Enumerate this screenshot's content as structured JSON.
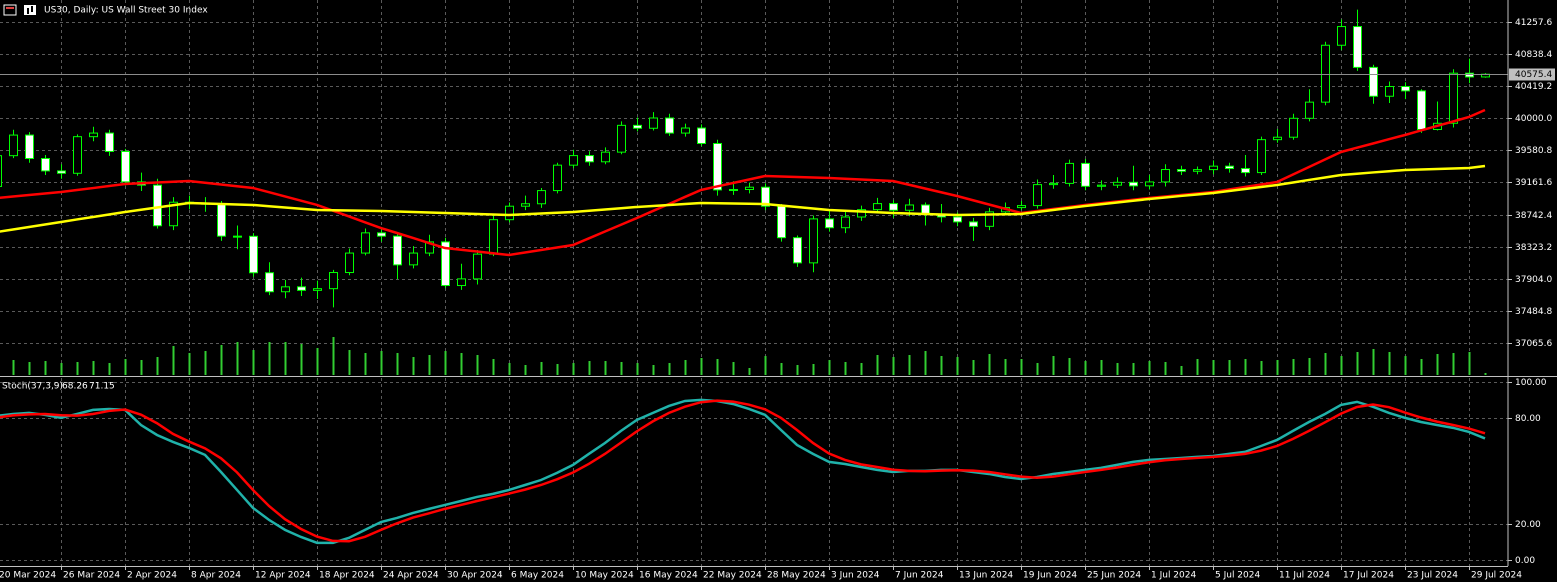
{
  "chart_data": [
    {
      "type": "candlestick",
      "title": "US30, Daily:  US Wall Street 30 Index",
      "categories": [
        "20 Mar 2024",
        null,
        null,
        null,
        "26 Mar 2024",
        null,
        null,
        null,
        "2 Apr 2024",
        null,
        null,
        null,
        "8 Apr 2024",
        null,
        null,
        null,
        "12 Apr 2024",
        null,
        null,
        null,
        "18 Apr 2024",
        null,
        null,
        null,
        "24 Apr 2024",
        null,
        null,
        null,
        "30 Apr 2024",
        null,
        null,
        null,
        "6 May 2024",
        null,
        null,
        null,
        "10 May 2024",
        null,
        null,
        null,
        "16 May 2024",
        null,
        null,
        null,
        "22 May 2024",
        null,
        null,
        null,
        "28 May 2024",
        null,
        null,
        null,
        "3 Jun 2024",
        null,
        null,
        null,
        "7 Jun 2024",
        null,
        null,
        null,
        "13 Jun 2024",
        null,
        null,
        null,
        "19 Jun 2024",
        null,
        null,
        null,
        "25 Jun 2024",
        null,
        null,
        null,
        "1 Jul 2024",
        null,
        null,
        null,
        "5 Jul 2024",
        null,
        null,
        null,
        "11 Jul 2024",
        null,
        null,
        null,
        "17 Jul 2024",
        null,
        null,
        null,
        "23 Jul 2024",
        null,
        null,
        null,
        "29 Jul 2024",
        null
      ],
      "open": [
        39110,
        39512,
        39781,
        39475,
        39313,
        39282,
        39760,
        39807,
        39567,
        39170,
        39127,
        38597,
        38904,
        38892,
        38883,
        38461,
        38459,
        37983,
        37735,
        37799,
        37753,
        37775,
        37986,
        38240,
        38504,
        38461,
        38086,
        38240,
        38386,
        37816,
        37903,
        38226,
        38676,
        38852,
        38884,
        39056,
        39388,
        39513,
        39432,
        39558,
        39908,
        39870,
        40004,
        39807,
        39873,
        39671,
        39065,
        39070,
        39100,
        38852,
        38441,
        38112,
        38686,
        38571,
        38711,
        38807,
        38886,
        38799,
        38868,
        38747,
        38712,
        38647,
        38589,
        38778,
        38834,
        38860,
        39134,
        39150,
        39411,
        39112,
        39127,
        39164,
        39118,
        39169,
        39331,
        39308,
        39330,
        39375,
        39344,
        39291,
        39721,
        39753,
        40000,
        40211,
        40954,
        41198,
        40665,
        40288,
        40415,
        40358,
        39854,
        39935,
        40589,
        40540
      ],
      "high": [
        39560,
        39850,
        39820,
        39520,
        39400,
        39790,
        39890,
        39850,
        39600,
        39290,
        39210,
        38970,
        38990,
        38970,
        38920,
        38600,
        38500,
        38120,
        37890,
        37920,
        37880,
        38020,
        38300,
        38560,
        38570,
        38490,
        38330,
        38480,
        38440,
        38100,
        38280,
        38750,
        38900,
        38990,
        39090,
        39420,
        39590,
        39570,
        39620,
        39960,
        40010,
        40080,
        40060,
        39930,
        39920,
        39720,
        39180,
        39160,
        39150,
        38880,
        38470,
        38730,
        38790,
        38780,
        38860,
        38960,
        38930,
        38950,
        38900,
        38880,
        38770,
        38700,
        38830,
        38900,
        38920,
        39200,
        39260,
        39460,
        39470,
        39190,
        39230,
        39380,
        39260,
        39400,
        39380,
        39370,
        39450,
        39420,
        39520,
        39760,
        39860,
        40060,
        40380,
        41000,
        41290,
        41420,
        40700,
        40480,
        40470,
        40380,
        40220,
        40640,
        40780,
        40590
      ],
      "low": [
        39050,
        39480,
        39420,
        39260,
        39210,
        39250,
        39700,
        39510,
        39120,
        39050,
        38560,
        38540,
        38810,
        38780,
        38400,
        38290,
        37930,
        37690,
        37650,
        37680,
        37640,
        37530,
        37950,
        38210,
        38390,
        37900,
        38040,
        38200,
        37780,
        37760,
        37830,
        38200,
        38640,
        38800,
        38830,
        39020,
        39350,
        39380,
        39400,
        39530,
        39830,
        39840,
        39770,
        39760,
        39640,
        38990,
        39000,
        39020,
        38800,
        38390,
        38060,
        37990,
        38520,
        38500,
        38660,
        38760,
        38700,
        38720,
        38600,
        38640,
        38590,
        38400,
        38540,
        38730,
        38800,
        38820,
        39080,
        39110,
        39060,
        39060,
        39090,
        39060,
        39070,
        39110,
        39260,
        39270,
        39270,
        39290,
        39240,
        39260,
        39680,
        39720,
        39960,
        40170,
        40890,
        40620,
        40190,
        40200,
        40250,
        39810,
        39840,
        39880,
        40460,
        40530
      ],
      "close": [
        39512,
        39781,
        39475,
        39313,
        39282,
        39760,
        39807,
        39567,
        39170,
        39127,
        38597,
        38904,
        38892,
        38883,
        38461,
        38459,
        37983,
        37735,
        37799,
        37753,
        37775,
        37986,
        38240,
        38504,
        38461,
        38086,
        38240,
        38386,
        37816,
        37903,
        38226,
        38676,
        38852,
        38884,
        39056,
        39388,
        39513,
        39432,
        39558,
        39908,
        39870,
        40004,
        39807,
        39873,
        39671,
        39065,
        39070,
        39100,
        38852,
        38441,
        38112,
        38686,
        38571,
        38711,
        38807,
        38886,
        38799,
        38868,
        38747,
        38712,
        38647,
        38589,
        38778,
        38834,
        38860,
        39134,
        39150,
        39411,
        39112,
        39127,
        39164,
        39118,
        39169,
        39331,
        39308,
        39330,
        39375,
        39344,
        39291,
        39721,
        39753,
        40000,
        40211,
        40954,
        41198,
        40665,
        40288,
        40415,
        40358,
        39854,
        39935,
        40589,
        40540,
        40575.4
      ],
      "bull_color": "#000000",
      "bear_color": "#ffffff",
      "candle_edge": "#00ff00",
      "series": [
        {
          "color": "#ff0000",
          "values": [
            38959,
            38979,
            38998,
            39018,
            39037,
            39063,
            39089,
            39116,
            39142,
            39152,
            39162,
            39171,
            39181,
            39158,
            39136,
            39113,
            39090,
            39035,
            38979,
            38924,
            38868,
            38793,
            38718,
            38642,
            38567,
            38502,
            38437,
            38371,
            38306,
            38283,
            38260,
            38238,
            38215,
            38248,
            38280,
            38313,
            38345,
            38433,
            38522,
            38610,
            38698,
            38790,
            38881,
            38973,
            39064,
            39110,
            39155,
            39201,
            39246,
            39240,
            39233,
            39227,
            39220,
            39210,
            39201,
            39191,
            39181,
            39132,
            39083,
            39034,
            38985,
            38930,
            38874,
            38819,
            38763,
            38789,
            38816,
            38842,
            38868,
            38891,
            38914,
            38936,
            38959,
            38979,
            38998,
            39018,
            39037,
            39070,
            39103,
            39135,
            39168,
            39266,
            39364,
            39462,
            39560,
            39616,
            39671,
            39727,
            39782,
            39841,
            39900,
            39958,
            40017,
            40108
          ]
        },
        {
          "color": "#ffff00",
          "values": [
            38515,
            38548,
            38581,
            38613,
            38646,
            38679,
            38711,
            38744,
            38776,
            38806,
            38835,
            38865,
            38894,
            38888,
            38881,
            38875,
            38868,
            38852,
            38835,
            38819,
            38802,
            38799,
            38796,
            38792,
            38789,
            38783,
            38776,
            38770,
            38763,
            38757,
            38750,
            38744,
            38737,
            38747,
            38757,
            38766,
            38776,
            38793,
            38809,
            38826,
            38842,
            38855,
            38868,
            38881,
            38894,
            38891,
            38888,
            38884,
            38881,
            38861,
            38842,
            38822,
            38802,
            38792,
            38783,
            38773,
            38763,
            38757,
            38750,
            38744,
            38737,
            38740,
            38744,
            38747,
            38750,
            38776,
            38802,
            38829,
            38855,
            38878,
            38900,
            38923,
            38946,
            38966,
            38986,
            39005,
            39025,
            39051,
            39077,
            39103,
            39129,
            39162,
            39195,
            39227,
            39260,
            39276,
            39293,
            39309,
            39325,
            39332,
            39338,
            39345,
            39351,
            39377
          ]
        }
      ],
      "volume": {
        "color": "#32cd32",
        "ylim": [
          0,
          375000
        ],
        "values": [
          16000,
          15000,
          13000,
          14000,
          12000,
          13000,
          14000,
          12000,
          16000,
          15000,
          18000,
          29000,
          22000,
          24000,
          30000,
          33000,
          25000,
          33000,
          33000,
          31000,
          27000,
          38000,
          25000,
          22000,
          24000,
          22000,
          18000,
          20000,
          24000,
          22000,
          20000,
          16000,
          12000,
          10000,
          13000,
          11000,
          12000,
          14000,
          14000,
          13000,
          12000,
          10000,
          12000,
          15000,
          17000,
          16000,
          13000,
          7000,
          19000,
          12000,
          10000,
          11000,
          15000,
          13000,
          12000,
          20000,
          18000,
          20000,
          24000,
          19000,
          18000,
          15000,
          21000,
          16000,
          16000,
          12000,
          19000,
          17000,
          14000,
          15000,
          12000,
          12000,
          14000,
          13000,
          9000,
          16000,
          15000,
          15000,
          16000,
          14000,
          15000,
          16000,
          17000,
          22000,
          19000,
          23000,
          26000,
          23000,
          19000,
          16000,
          21000,
          22000,
          23000,
          2000
        ]
      },
      "ylim": [
        36647.6,
        41544.9
      ],
      "yticks": [
        41257.6,
        40838.4,
        40419.2,
        {
          "value": 40000,
          "label": "40000.0"
        },
        39580.8,
        39161.6,
        38742.4,
        38323.2,
        {
          "value": 37904,
          "label": "37904.0"
        },
        37484.8,
        37065.6
      ],
      "grid": true
    },
    {
      "type": "line",
      "title": "Stoch(37,3,9)",
      "series": [
        {
          "color": "#20b2aa",
          "values": [
            80.9,
            82.0,
            82.6,
            81.5,
            79.8,
            82.0,
            84.3,
            84.8,
            84.3,
            75.8,
            70.2,
            66.3,
            62.9,
            59.0,
            49.4,
            39.3,
            29.2,
            22.5,
            16.9,
            12.9,
            9.6,
            9.6,
            12.4,
            16.9,
            21.3,
            23.6,
            26.4,
            28.7,
            30.9,
            33.1,
            35.4,
            37.1,
            39.3,
            42.1,
            44.9,
            48.9,
            53.4,
            59.6,
            65.7,
            72.5,
            78.7,
            82.6,
            86.5,
            89.3,
            89.9,
            89.3,
            87.6,
            84.8,
            81.5,
            73.0,
            64.6,
            59.6,
            55.1,
            53.9,
            52.2,
            50.6,
            49.4,
            50.0,
            50.0,
            50.6,
            50.6,
            49.4,
            48.3,
            46.6,
            45.5,
            46.6,
            48.3,
            49.4,
            50.6,
            51.7,
            53.4,
            55.1,
            56.2,
            56.7,
            57.3,
            57.9,
            58.4,
            59.6,
            60.7,
            64.0,
            67.4,
            72.5,
            77.5,
            82.0,
            87.1,
            88.8,
            86.0,
            82.6,
            79.8,
            77.5,
            75.8,
            74.2,
            71.9,
            68.26
          ]
        },
        {
          "color": "#ff0000",
          "values": [
            80.0,
            81.2,
            81.8,
            82.0,
            81.3,
            81.1,
            82.0,
            83.7,
            84.5,
            81.6,
            76.8,
            70.8,
            66.5,
            62.7,
            57.1,
            49.2,
            39.3,
            30.3,
            22.9,
            17.4,
            13.1,
            10.7,
            10.5,
            13.0,
            16.9,
            20.6,
            23.8,
            26.2,
            28.7,
            30.9,
            33.1,
            35.2,
            37.3,
            39.5,
            42.1,
            45.3,
            49.1,
            54.0,
            59.6,
            65.9,
            72.3,
            77.9,
            82.6,
            86.1,
            88.6,
            89.5,
            88.9,
            87.2,
            84.6,
            79.8,
            73.0,
            65.7,
            59.8,
            56.2,
            53.7,
            52.2,
            50.7,
            50.0,
            49.8,
            50.2,
            50.4,
            50.2,
            49.4,
            48.1,
            46.8,
            46.2,
            46.8,
            48.1,
            49.4,
            50.6,
            51.9,
            53.4,
            54.9,
            56.0,
            56.7,
            57.3,
            57.9,
            58.6,
            59.6,
            61.4,
            64.0,
            68.0,
            72.5,
            77.3,
            82.2,
            85.9,
            87.3,
            85.8,
            82.8,
            80.0,
            77.7,
            75.8,
            73.8,
            71.15
          ]
        }
      ],
      "ylim": [
        -3.4,
        102.2
      ],
      "yticks": [
        {
          "value": 100,
          "label": "100.00"
        },
        {
          "value": 80,
          "label": "80.00"
        },
        {
          "value": 20,
          "label": "20.00"
        },
        {
          "value": 0,
          "label": "0.00"
        }
      ],
      "grid": true
    }
  ]
}
